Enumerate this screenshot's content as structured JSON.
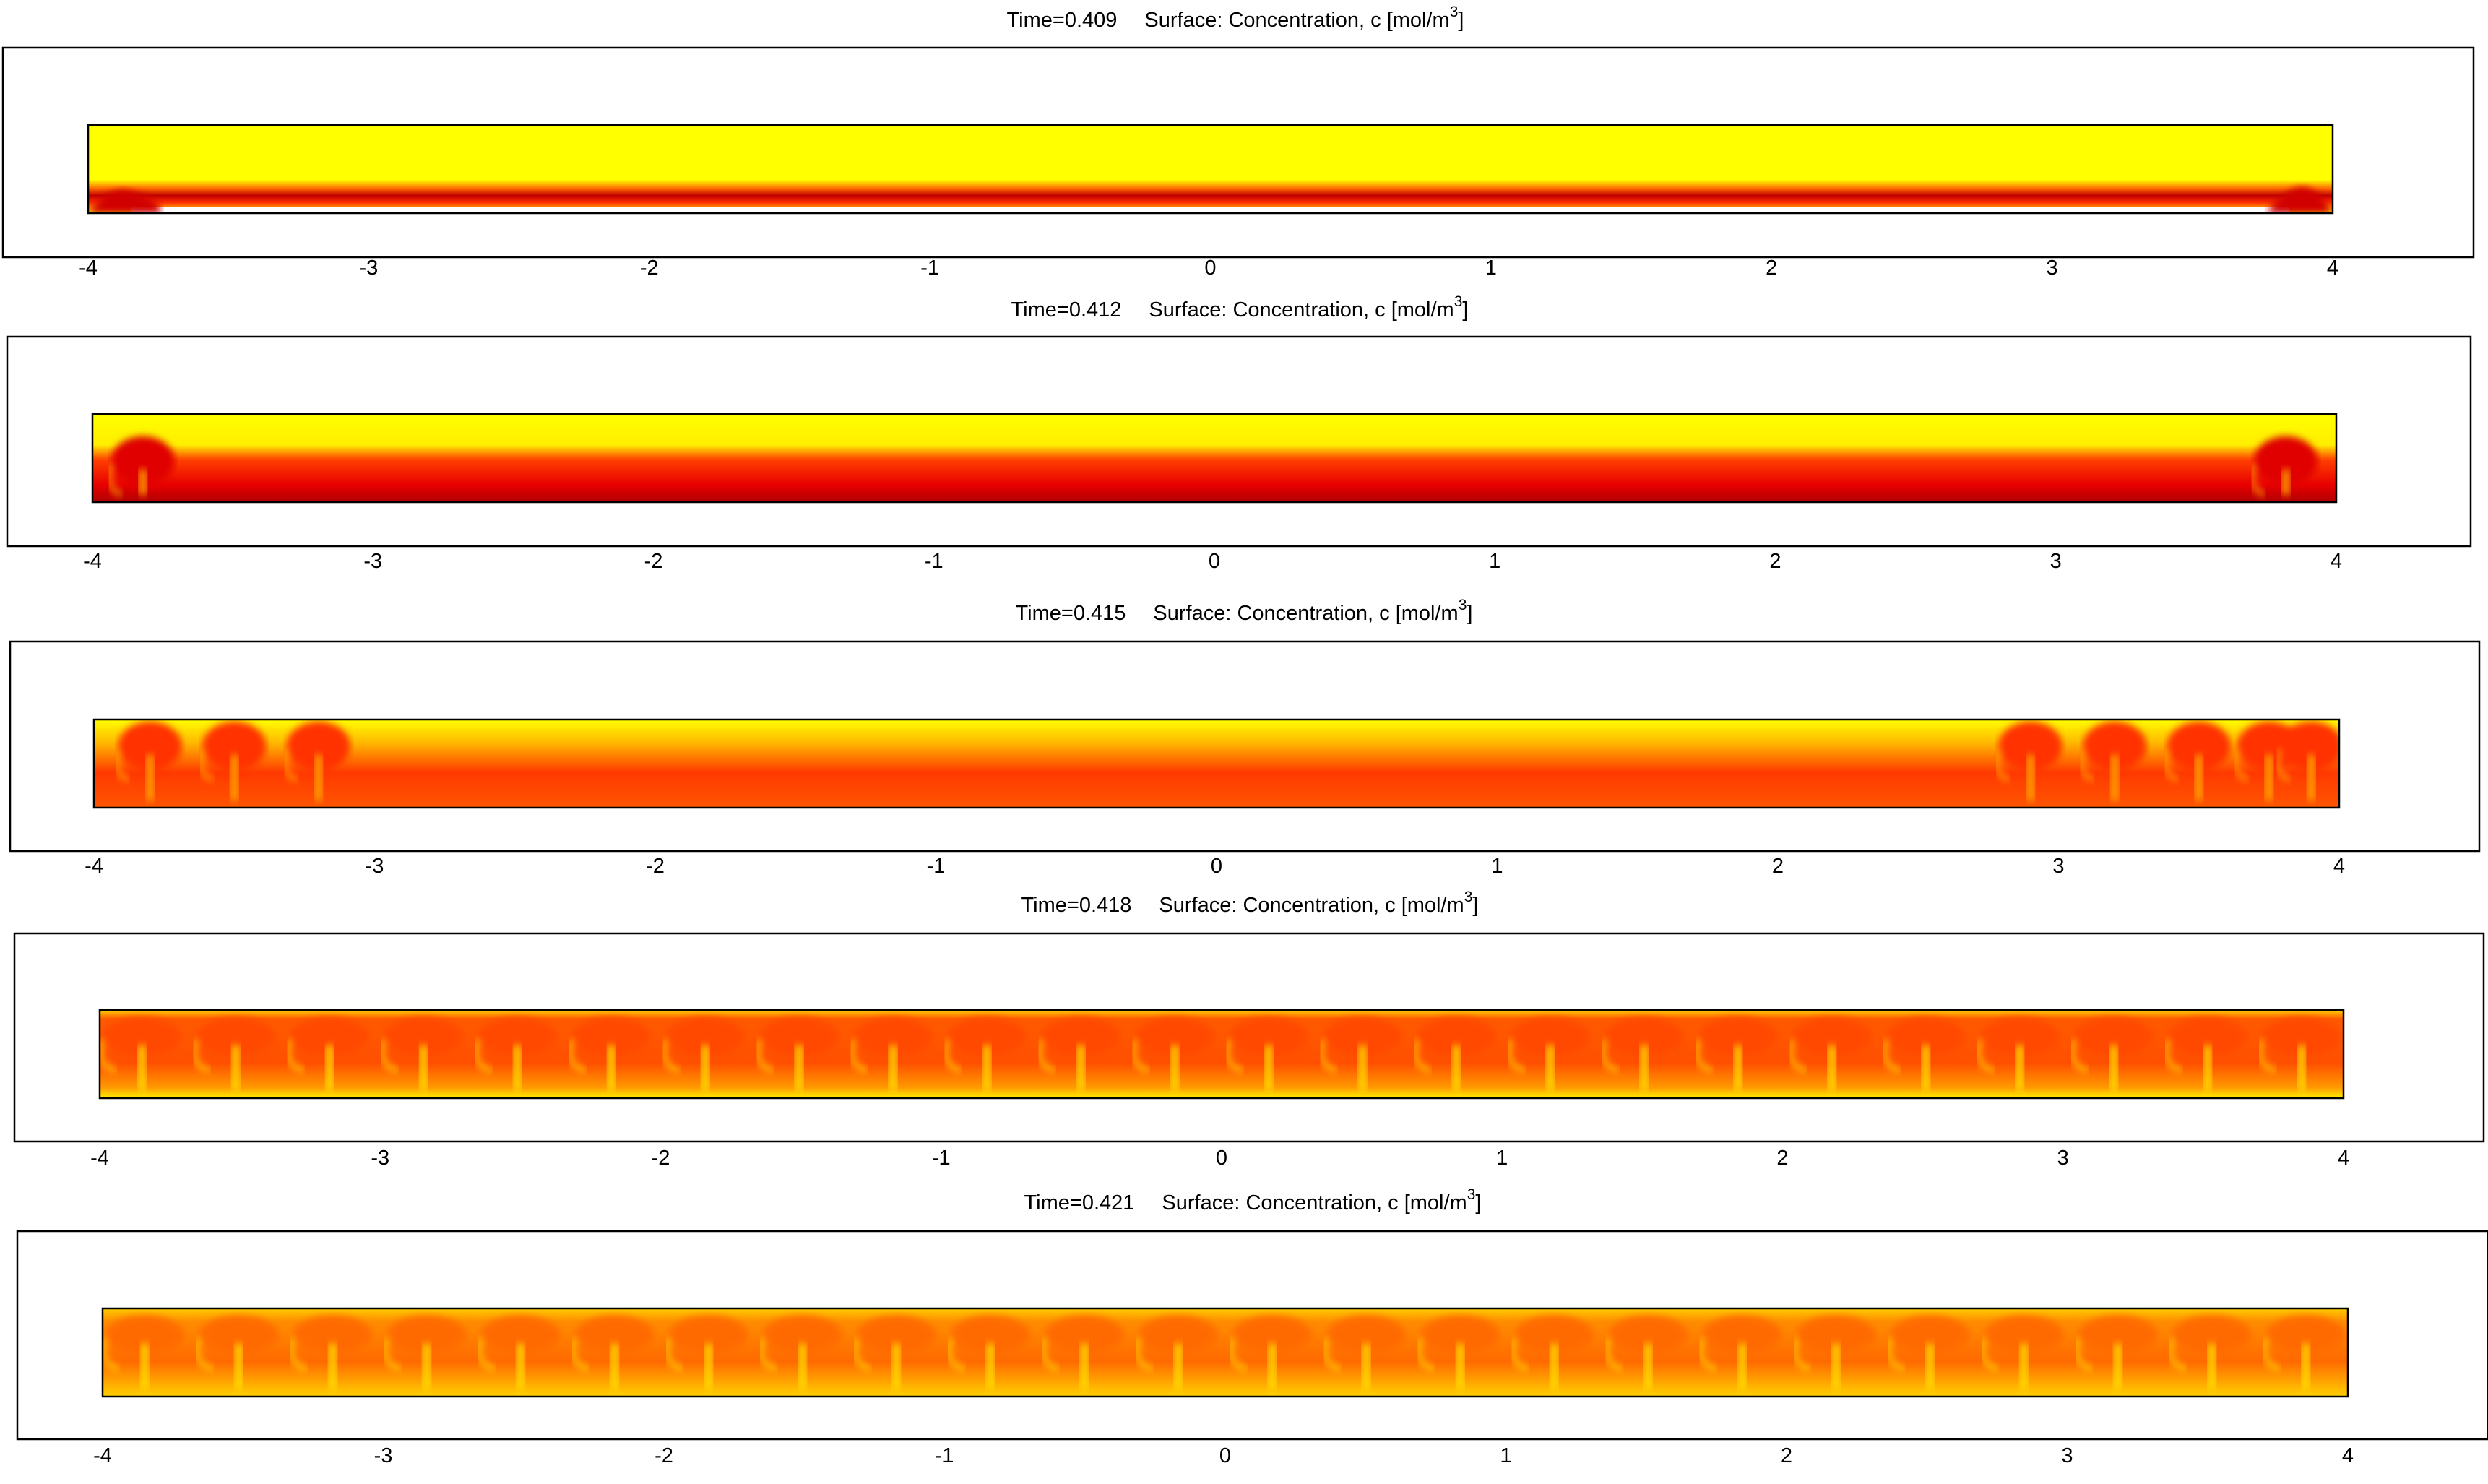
{
  "figure": {
    "title_label": "Surface: Concentration, c [mol/m",
    "title_unit_exponent": "3",
    "title_unit_close": "]"
  },
  "colors": {
    "high": "#ffff00",
    "mid": "#ff8c00",
    "low": "#c00000",
    "background": "#ffffff",
    "axis": "#000000"
  },
  "chart_data": [
    {
      "type": "heatmap",
      "title": "Time=0.409    Surface: Concentration, c [mol/m3]",
      "time_label": "Time=0.409",
      "time": 0.409,
      "x_ticks": [
        -4,
        -3,
        -2,
        -1,
        0,
        1,
        2,
        3,
        4
      ],
      "tick_labels": [
        "-4",
        "-3",
        "-2",
        "-1",
        "0",
        "1",
        "2",
        "3",
        "4"
      ],
      "xlim": [
        -4,
        4
      ],
      "colormap": "heat (dark red - red - orange - yellow)",
      "fingers": 0,
      "layer": "thin dark red layer along the bottom; yellow above"
    },
    {
      "type": "heatmap",
      "title": "Time=0.412    Surface: Concentration, c [mol/m3]",
      "time_label": "Time=0.412",
      "time": 0.412,
      "x_ticks": [
        -4,
        -3,
        -2,
        -1,
        0,
        1,
        2,
        3,
        4
      ],
      "tick_labels": [
        "-4",
        "-3",
        "-2",
        "-1",
        "0",
        "1",
        "2",
        "3",
        "4"
      ],
      "xlim": [
        -4,
        4
      ],
      "colormap": "heat (dark red - red - orange - yellow)",
      "fingers": 2,
      "layer": "red layer in lower half; yellow above; instabilities at both ends"
    },
    {
      "type": "heatmap",
      "title": "Time=0.415    Surface: Concentration, c [mol/m3]",
      "time_label": "Time=0.415",
      "time": 0.415,
      "x_ticks": [
        -4,
        -3,
        -2,
        -1,
        0,
        1,
        2,
        3,
        4
      ],
      "tick_labels": [
        "-4",
        "-3",
        "-2",
        "-1",
        "0",
        "1",
        "2",
        "3",
        "4"
      ],
      "xlim": [
        -4,
        4
      ],
      "colormap": "heat (dark red - red - orange - yellow)",
      "fingers": 8,
      "layer": "red-orange layer; plumes developing near the left and right ends"
    },
    {
      "type": "heatmap",
      "title": "Time=0.418    Surface: Concentration, c [mol/m3]",
      "time_label": "Time=0.418",
      "time": 0.418,
      "x_ticks": [
        -4,
        -3,
        -2,
        -1,
        0,
        1,
        2,
        3,
        4
      ],
      "tick_labels": [
        "-4",
        "-3",
        "-2",
        "-1",
        "0",
        "1",
        "2",
        "3",
        "4"
      ],
      "xlim": [
        -4,
        4
      ],
      "colormap": "heat (dark red - red - orange - yellow)",
      "fingers": 24,
      "layer": "mushroom-shaped plumes across the full width"
    },
    {
      "type": "heatmap",
      "title": "Time=0.421    Surface: Concentration, c [mol/m3]",
      "time_label": "Time=0.421",
      "time": 0.421,
      "x_ticks": [
        -4,
        -3,
        -2,
        -1,
        0,
        1,
        2,
        3,
        4
      ],
      "tick_labels": [
        "-4",
        "-3",
        "-2",
        "-1",
        "0",
        "1",
        "2",
        "3",
        "4"
      ],
      "xlim": [
        -4,
        4
      ],
      "colormap": "heat (dark red - red - orange - yellow)",
      "fingers": 24,
      "layer": "mixed orange field with dense plumes"
    }
  ]
}
